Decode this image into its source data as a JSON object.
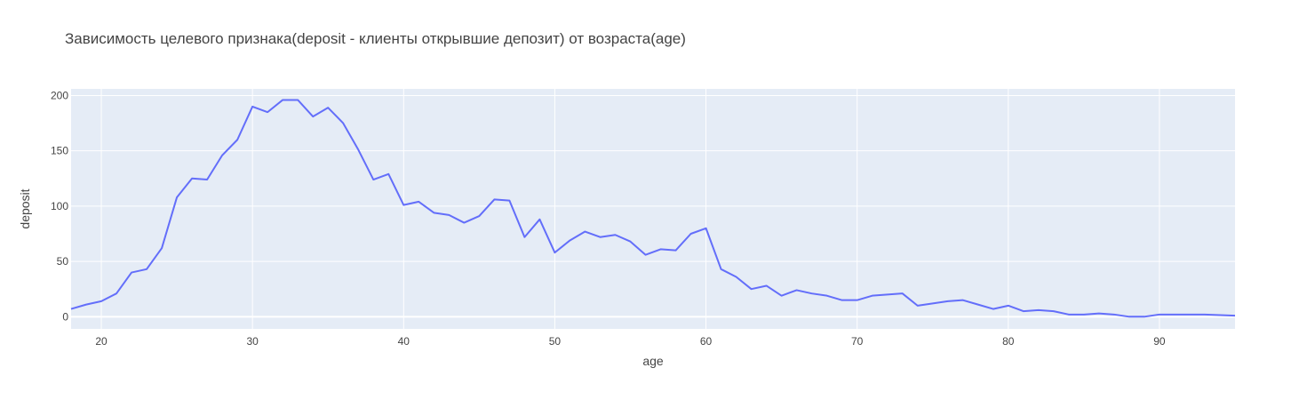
{
  "chart_data": {
    "type": "line",
    "title": "Зависимость целевого признака(deposit - клиенты открывшие депозит) от возраста(age)",
    "xlabel": "age",
    "ylabel": "deposit",
    "xlim": [
      18,
      95
    ],
    "ylim": [
      -11,
      206
    ],
    "x_ticks": [
      20,
      30,
      40,
      50,
      60,
      70,
      80,
      90
    ],
    "y_ticks": [
      0,
      50,
      100,
      150,
      200
    ],
    "grid": true,
    "legend": "none",
    "colors": {
      "line": "#636efa",
      "plot_bg": "#e5ecf6",
      "grid": "#ffffff",
      "text": "#444444"
    },
    "x": [
      18,
      19,
      20,
      21,
      22,
      23,
      24,
      25,
      26,
      27,
      28,
      29,
      30,
      31,
      32,
      33,
      34,
      35,
      36,
      37,
      38,
      39,
      40,
      41,
      42,
      43,
      44,
      45,
      46,
      47,
      48,
      49,
      50,
      51,
      52,
      53,
      54,
      55,
      56,
      57,
      58,
      59,
      60,
      61,
      62,
      63,
      64,
      65,
      66,
      67,
      68,
      69,
      70,
      71,
      72,
      73,
      74,
      75,
      76,
      77,
      78,
      79,
      80,
      81,
      82,
      83,
      84,
      85,
      86,
      87,
      88,
      89,
      90,
      91,
      92,
      93,
      94,
      95
    ],
    "values": [
      7,
      11,
      14,
      21,
      40,
      43,
      62,
      108,
      125,
      124,
      146,
      160,
      190,
      185,
      196,
      196,
      181,
      189,
      175,
      151,
      124,
      129,
      101,
      104,
      94,
      92,
      85,
      91,
      106,
      105,
      72,
      88,
      58,
      69,
      77,
      72,
      74,
      68,
      56,
      61,
      60,
      75,
      80,
      43,
      36,
      25,
      28,
      19,
      24,
      21,
      19,
      15,
      15,
      19,
      20,
      21,
      10,
      12,
      14,
      15,
      11,
      7,
      10,
      5,
      6,
      5,
      2,
      2,
      3,
      2,
      0,
      0,
      2,
      2,
      2,
      2,
      1.5,
      1
    ]
  }
}
